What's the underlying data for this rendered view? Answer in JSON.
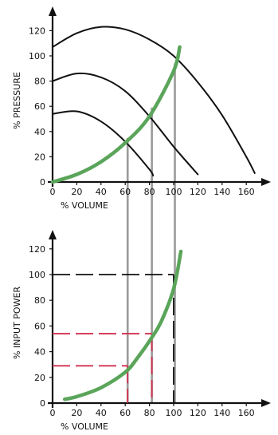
{
  "chart_data": [
    {
      "type": "line",
      "xlabel": "% VOLUME",
      "ylabel": "% PRESSURE",
      "xlim": [
        0,
        180
      ],
      "ylim": [
        0,
        130
      ],
      "x_ticks": [
        "0",
        "20",
        "40",
        "60",
        "80",
        "100",
        "120",
        "140",
        "160"
      ],
      "y_ticks": [
        "0",
        "20",
        "40",
        "60",
        "80",
        "100",
        "120"
      ],
      "grid": false,
      "colors": {
        "pump_curves": "#111111",
        "system_curve": "#5aa55a",
        "drop_lines": "#9a9a9a"
      },
      "series": [
        {
          "role": "pump_curve",
          "x": [
            0,
            20,
            40,
            60,
            80,
            100,
            120,
            140,
            160,
            167
          ],
          "y": [
            107,
            118,
            123,
            121,
            113,
            100,
            79,
            53,
            20,
            7
          ]
        },
        {
          "role": "pump_curve",
          "x": [
            0,
            20,
            40,
            60,
            80,
            100,
            120
          ],
          "y": [
            80,
            86,
            83,
            72,
            52,
            28,
            6
          ]
        },
        {
          "role": "pump_curve",
          "x": [
            0,
            20,
            40,
            60,
            80,
            83
          ],
          "y": [
            54,
            56,
            48,
            32,
            10,
            5
          ]
        },
        {
          "role": "system_curve",
          "x": [
            0,
            20,
            40,
            60,
            80,
            100,
            105
          ],
          "y": [
            0,
            6,
            16,
            31,
            52,
            88,
            107
          ]
        }
      ],
      "operating_points": [
        {
          "x": 62,
          "y": 35
        },
        {
          "x": 82,
          "y": 59
        },
        {
          "x": 101,
          "y": 94
        }
      ]
    },
    {
      "type": "line",
      "xlabel": "% VOLUME",
      "ylabel": "% INPUT POWER",
      "xlim": [
        0,
        180
      ],
      "ylim": [
        0,
        130
      ],
      "x_ticks": [
        "0",
        "20",
        "40",
        "60",
        "80",
        "100",
        "120",
        "140",
        "160"
      ],
      "y_ticks": [
        "0",
        "20",
        "40",
        "60",
        "80",
        "100",
        "120"
      ],
      "grid": false,
      "colors": {
        "power_curve": "#5aa55a",
        "reference_100": "#111111",
        "reference_red": "#d43050"
      },
      "series": [
        {
          "role": "power_curve",
          "x": [
            10,
            20,
            40,
            60,
            70,
            82,
            90,
            100,
            106
          ],
          "y": [
            3,
            5,
            12,
            24,
            35,
            51,
            64,
            89,
            118
          ]
        }
      ],
      "reference_lines": [
        {
          "x": 100,
          "y": 100,
          "color": "black"
        },
        {
          "x": 82,
          "y": 54,
          "color": "red"
        },
        {
          "x": 62,
          "y": 29,
          "color": "red"
        }
      ]
    }
  ]
}
